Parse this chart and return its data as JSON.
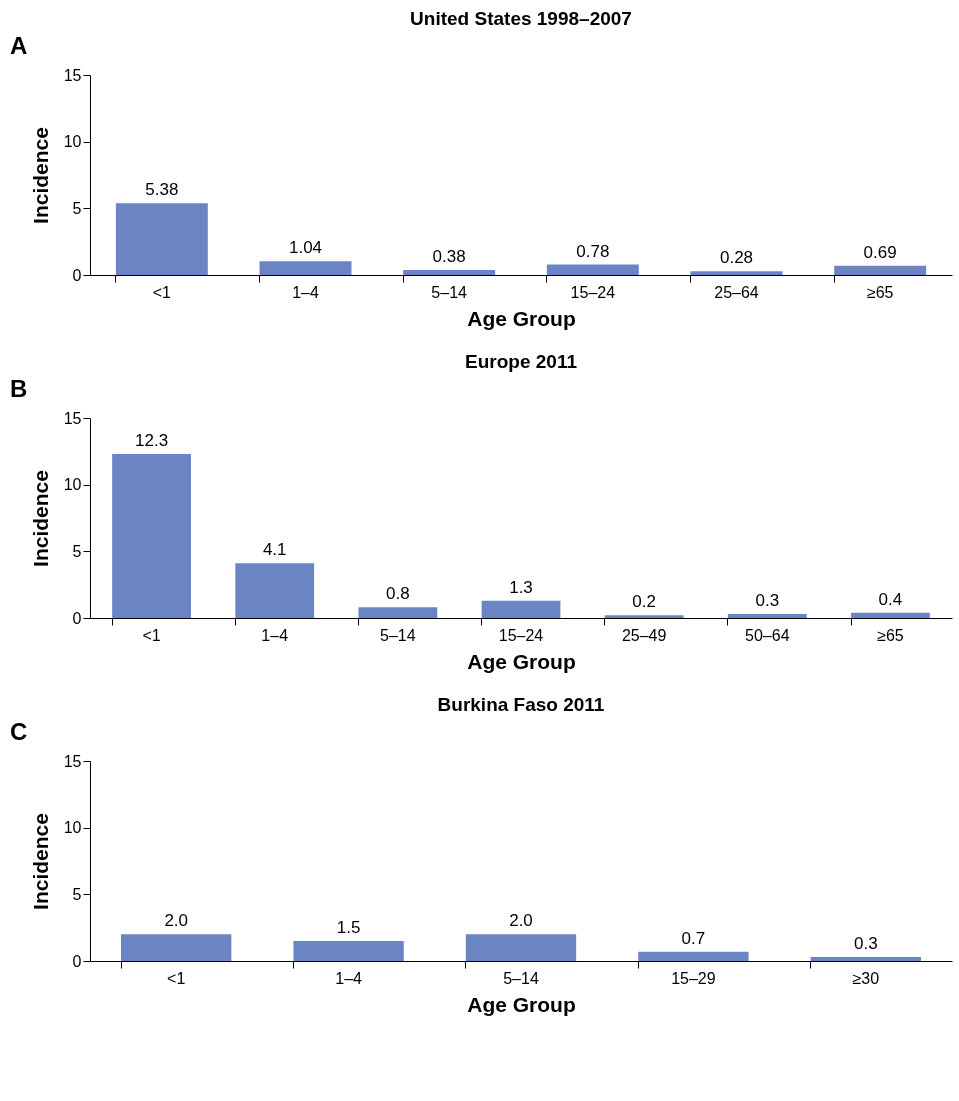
{
  "chart_data": [
    {
      "type": "bar",
      "title": "United States 1998–2007",
      "annotations": [
        "A"
      ],
      "xlabel": "Age Group",
      "ylabel": "Incidence",
      "categories": [
        "<1",
        "1–4",
        "5–14",
        "15–24",
        "25–64",
        "≥65"
      ],
      "values": [
        5.38,
        1.04,
        0.38,
        0.78,
        0.28,
        0.69
      ],
      "color": "#6b84c3",
      "ylim": [
        0,
        15
      ],
      "yticks": [
        0,
        5,
        10,
        15
      ],
      "grid": false,
      "data_labels": true
    },
    {
      "type": "bar",
      "title": "Europe 2011",
      "annotations": [
        "B"
      ],
      "xlabel": "Age Group",
      "ylabel": "Incidence",
      "categories": [
        "<1",
        "1–4",
        "5–14",
        "15–24",
        "25–49",
        "50–64",
        "≥65"
      ],
      "values": [
        12.3,
        4.1,
        0.8,
        1.3,
        0.2,
        0.3,
        0.4
      ],
      "color": "#6b84c3",
      "ylim": [
        0,
        15
      ],
      "yticks": [
        0,
        5,
        10,
        15
      ],
      "grid": false,
      "data_labels": true
    },
    {
      "type": "bar",
      "title": "Burkina Faso 2011",
      "annotations": [
        "C"
      ],
      "xlabel": "Age Group",
      "ylabel": "Incidence",
      "categories": [
        "<1",
        "1–4",
        "5–14",
        "15–29",
        "≥30"
      ],
      "values": [
        2.0,
        1.5,
        2.0,
        0.7,
        0.3
      ],
      "value_labels": [
        "2.0",
        "1.5",
        "2.0",
        "0.7",
        "0.3"
      ],
      "color": "#6b84c3",
      "ylim": [
        0,
        15
      ],
      "yticks": [
        0,
        5,
        10,
        15
      ],
      "grid": false
    }
  ]
}
